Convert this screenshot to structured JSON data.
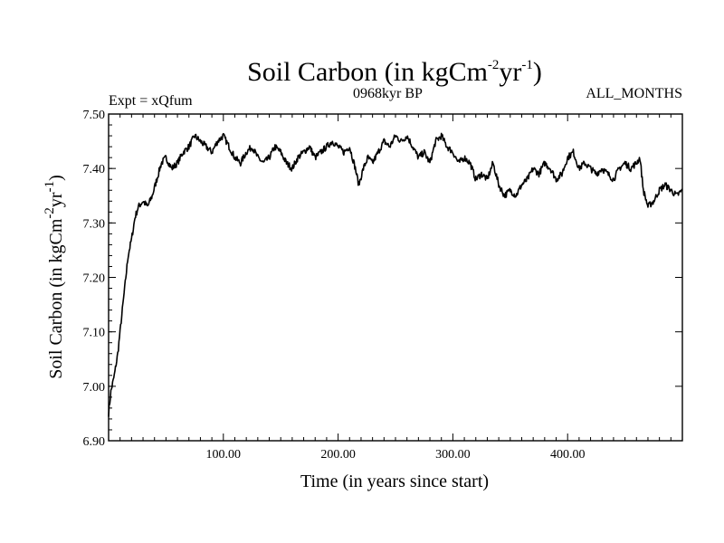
{
  "chart_data": {
    "type": "line",
    "title_main": "Soil Carbon (in kgCm",
    "title_sup1": "-2",
    "title_mid": "yr",
    "title_sup2": "-1",
    "title_end": ")",
    "experiment": "Expt = xQfum",
    "period": "0968kyr BP",
    "months": "ALL_MONTHS",
    "xlabel": "Time (in years since start)",
    "ylabel_main": "Soil Carbon (in kgCm",
    "ylabel_sup1": "-2",
    "ylabel_mid": "yr",
    "ylabel_sup2": "-1",
    "ylabel_end": ")",
    "xlim": [
      0,
      500
    ],
    "ylim": [
      6.9,
      7.5
    ],
    "xticks": [
      100,
      200,
      300,
      400
    ],
    "xtick_labels": [
      "100.00",
      "200.00",
      "300.00",
      "400.00"
    ],
    "yticks": [
      6.9,
      7.0,
      7.1,
      7.2,
      7.3,
      7.4,
      7.5
    ],
    "ytick_labels": [
      "6.90",
      "7.00",
      "7.10",
      "7.20",
      "7.30",
      "7.40",
      "7.50"
    ],
    "line_color": "#000000",
    "series": [
      {
        "name": "Soil Carbon",
        "x": [
          0,
          2,
          5,
          8,
          11,
          14,
          17,
          20,
          23,
          26,
          30,
          34,
          38,
          42,
          46,
          50,
          55,
          60,
          65,
          70,
          75,
          80,
          85,
          90,
          95,
          100,
          105,
          110,
          115,
          120,
          125,
          130,
          135,
          140,
          145,
          150,
          155,
          160,
          165,
          170,
          175,
          180,
          185,
          190,
          195,
          200,
          205,
          210,
          215,
          218,
          222,
          226,
          230,
          235,
          240,
          245,
          250,
          255,
          260,
          265,
          270,
          275,
          280,
          285,
          290,
          295,
          300,
          305,
          310,
          315,
          320,
          325,
          330,
          335,
          340,
          345,
          350,
          355,
          360,
          365,
          370,
          375,
          380,
          385,
          390,
          395,
          400,
          405,
          410,
          415,
          420,
          425,
          430,
          435,
          440,
          445,
          450,
          455,
          460,
          463,
          466,
          470,
          475,
          480,
          485,
          490,
          495,
          500
        ],
        "values": [
          6.95,
          6.99,
          7.02,
          7.06,
          7.12,
          7.18,
          7.24,
          7.27,
          7.31,
          7.33,
          7.34,
          7.33,
          7.35,
          7.38,
          7.41,
          7.42,
          7.4,
          7.41,
          7.43,
          7.44,
          7.46,
          7.45,
          7.44,
          7.43,
          7.45,
          7.46,
          7.44,
          7.42,
          7.41,
          7.43,
          7.44,
          7.42,
          7.41,
          7.42,
          7.44,
          7.43,
          7.41,
          7.4,
          7.42,
          7.43,
          7.44,
          7.42,
          7.43,
          7.44,
          7.45,
          7.44,
          7.43,
          7.44,
          7.4,
          7.37,
          7.4,
          7.42,
          7.41,
          7.43,
          7.45,
          7.44,
          7.46,
          7.45,
          7.46,
          7.44,
          7.42,
          7.43,
          7.41,
          7.45,
          7.46,
          7.44,
          7.43,
          7.41,
          7.42,
          7.41,
          7.38,
          7.39,
          7.38,
          7.41,
          7.37,
          7.35,
          7.36,
          7.35,
          7.37,
          7.38,
          7.4,
          7.39,
          7.41,
          7.4,
          7.38,
          7.39,
          7.42,
          7.43,
          7.4,
          7.41,
          7.4,
          7.39,
          7.4,
          7.39,
          7.38,
          7.4,
          7.41,
          7.4,
          7.41,
          7.42,
          7.36,
          7.33,
          7.34,
          7.36,
          7.37,
          7.36,
          7.35,
          7.36
        ]
      }
    ]
  }
}
